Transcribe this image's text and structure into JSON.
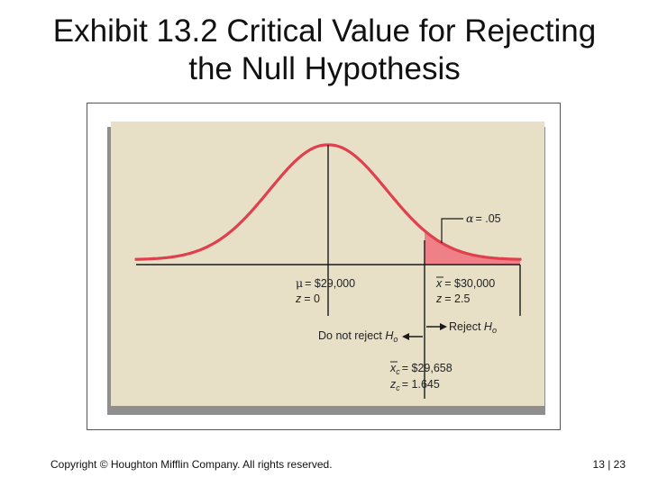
{
  "slide": {
    "title_line1": "Exhibit 13.2 Critical Value for Rejecting",
    "title_line2": "the Null Hypothesis",
    "copyright": "Copyright © Houghton Mifflin Company.  All rights reserved.",
    "page_number": "13 | 23"
  },
  "diagram": {
    "alpha": "= .05",
    "mean_value": "= $29,000",
    "mean_z": "= 0",
    "sample_value": "= $30,000",
    "sample_z": "= 2.5",
    "do_not_reject": "Do not reject ",
    "reject": "Reject ",
    "h0_sub": "o",
    "critical_value": "= $29,658",
    "critical_z": "= 1.645",
    "colors": {
      "panel_background": "#e7dfc6",
      "panel_shadow": "#8f8f8f",
      "curve": "#e0404e",
      "rejection_region": "#ef8088",
      "axis": "#1a1a1a"
    }
  }
}
